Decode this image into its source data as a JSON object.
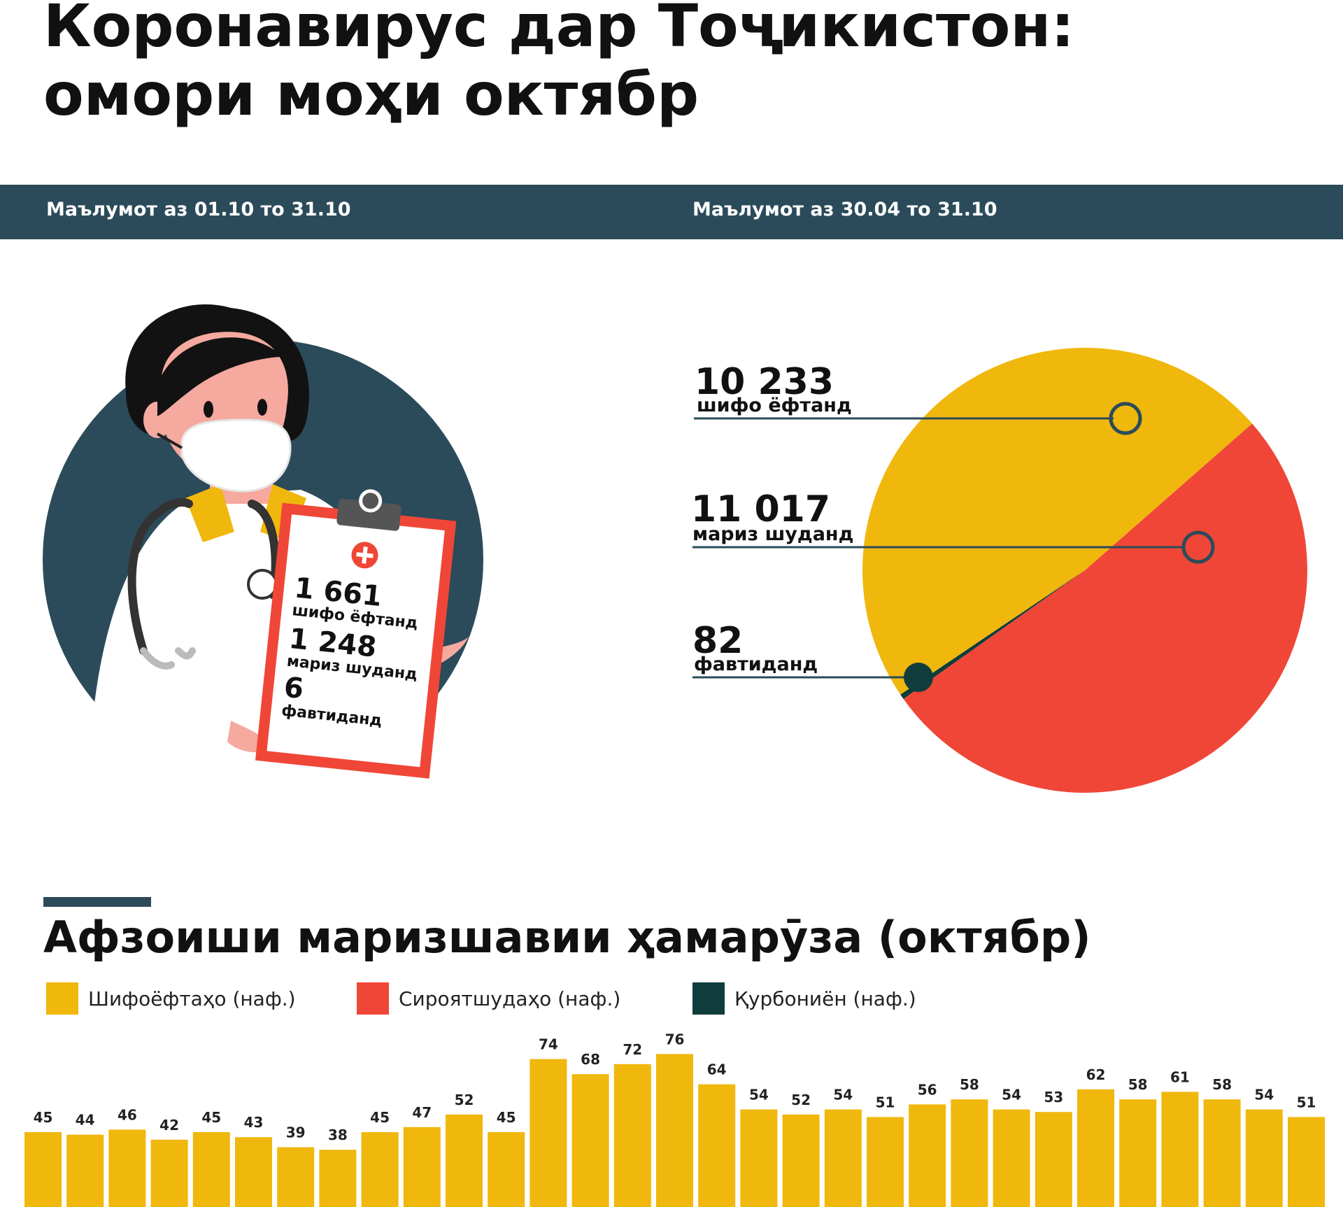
{
  "header": {
    "title_line1": "Коронавирус дар Тоҷикистон:",
    "title_line2": "омори моҳи октябр",
    "period_left": "Маълумот аз 01.10 то 31.10",
    "period_right": "Маълумот аз 30.04 то 31.10"
  },
  "clipboard": {
    "recovered_value": "1 661",
    "recovered_label": "шифо ёфтанд",
    "infected_value": "1 248",
    "infected_label": "мариз шуданд",
    "deaths_value": "6",
    "deaths_label": "фавтиданд"
  },
  "pie_labels": {
    "recovered_value": "10 233",
    "recovered_label": "шифо ёфтанд",
    "infected_value": "11 017",
    "infected_label": "мариз шуданд",
    "deaths_value": "82",
    "deaths_label": "фавтиданд"
  },
  "section": {
    "title": "Афзоиши маризшавии ҳамарӯза (октябр)",
    "legend": [
      {
        "label": "Шифоёфтаҳо (наф.)",
        "color": "#f0b70d"
      },
      {
        "label": "Сироятшудаҳо (наф.)",
        "color": "#f04637"
      },
      {
        "label": "Қурбониён (наф.)",
        "color": "#0e3d3b"
      }
    ]
  },
  "colors": {
    "yellow": "#f0b70d",
    "red": "#f04637",
    "dark": "#0e3d3b",
    "navy": "#2b4b5a"
  },
  "chart_data": [
    {
      "type": "pie",
      "categories": [
        "шифо ёфтанд",
        "мариз шуданд",
        "фавтиданд"
      ],
      "values": [
        10233,
        11017,
        82
      ],
      "colors": [
        "#f0b70d",
        "#f04637",
        "#0e3d3b"
      ]
    },
    {
      "type": "bar",
      "values": [
        45,
        44,
        46,
        42,
        45,
        43,
        39,
        38,
        45,
        47,
        52,
        45,
        74,
        68,
        72,
        76,
        64,
        54,
        52,
        54,
        51,
        56,
        58,
        54,
        53,
        62,
        58,
        61,
        58,
        54,
        51
      ],
      "color": "#f0b70d",
      "ylim": [
        0,
        100
      ]
    }
  ]
}
